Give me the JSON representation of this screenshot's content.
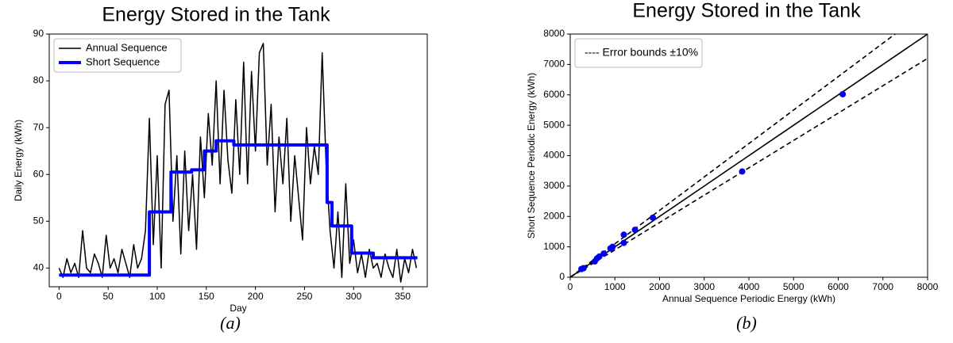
{
  "chart_data": [
    {
      "type": "line",
      "title": "Energy Stored in the Tank",
      "xlabel": "Day",
      "ylabel": "Daily Energy (kWh)",
      "caption": "(a)",
      "xlim": [
        -10,
        375
      ],
      "xticks": [
        0,
        50,
        100,
        150,
        200,
        250,
        300,
        350
      ],
      "ylim": [
        36,
        90
      ],
      "yticks": [
        40,
        50,
        60,
        70,
        80,
        90
      ],
      "legend": "upper left",
      "series": [
        {
          "name": "Annual Sequence",
          "color": "#000000",
          "width": 1.5,
          "x": [
            0,
            4,
            8,
            12,
            16,
            20,
            24,
            28,
            32,
            36,
            40,
            44,
            48,
            52,
            56,
            60,
            64,
            68,
            72,
            76,
            80,
            84,
            88,
            92,
            96,
            100,
            104,
            108,
            112,
            116,
            120,
            124,
            128,
            132,
            136,
            140,
            144,
            148,
            152,
            156,
            160,
            164,
            168,
            172,
            176,
            180,
            184,
            188,
            192,
            196,
            200,
            204,
            208,
            212,
            216,
            220,
            224,
            228,
            232,
            236,
            240,
            244,
            248,
            252,
            256,
            260,
            264,
            268,
            272,
            276,
            280,
            284,
            288,
            292,
            296,
            300,
            304,
            308,
            312,
            316,
            320,
            324,
            328,
            332,
            336,
            340,
            344,
            348,
            352,
            356,
            360,
            364
          ],
          "values": [
            40,
            38,
            42,
            39,
            41,
            38,
            48,
            40,
            39,
            43,
            41,
            38,
            47,
            40,
            42,
            39,
            44,
            41,
            38,
            45,
            40,
            42,
            48,
            72,
            45,
            64,
            40,
            75,
            78,
            50,
            64,
            43,
            65,
            48,
            60,
            44,
            68,
            55,
            73,
            62,
            80,
            58,
            78,
            63,
            56,
            76,
            60,
            84,
            58,
            82,
            65,
            86,
            88,
            62,
            75,
            52,
            68,
            58,
            72,
            50,
            64,
            55,
            46,
            70,
            58,
            66,
            60,
            86,
            62,
            48,
            40,
            52,
            38,
            58,
            41,
            46,
            39,
            43,
            38,
            44,
            40,
            41,
            38,
            43,
            40,
            38,
            44,
            37,
            42,
            39,
            44,
            40
          ]
        },
        {
          "name": "Short Sequence",
          "color": "#0000ff",
          "width": 4,
          "x": [
            0,
            92,
            92,
            114,
            114,
            135,
            135,
            148,
            148,
            160,
            160,
            178,
            178,
            273,
            273,
            278,
            278,
            298,
            298,
            320,
            320,
            365
          ],
          "values": [
            38.5,
            38.5,
            52,
            52,
            60.5,
            60.5,
            61,
            61,
            65,
            65,
            67.2,
            67.2,
            66.3,
            66.3,
            54,
            54,
            49,
            49,
            43.2,
            43.2,
            42.2,
            42.2
          ]
        }
      ]
    },
    {
      "type": "scatter",
      "title": "Energy Stored in the Tank",
      "xlabel": "Annual Sequence Periodic Energy (kWh)",
      "ylabel": "Short Sequence Periodic Energy (kWh)",
      "caption": "(b)",
      "xlim": [
        0,
        8000
      ],
      "xticks": [
        0,
        1000,
        2000,
        3000,
        4000,
        5000,
        6000,
        7000,
        8000
      ],
      "ylim": [
        0,
        8000
      ],
      "yticks": [
        0,
        1000,
        2000,
        3000,
        4000,
        5000,
        6000,
        7000,
        8000
      ],
      "legend": "upper left",
      "reference_lines": [
        {
          "slope": 1,
          "style": "solid"
        },
        {
          "slope": 1.1,
          "style": "dashed",
          "name": "---- Error bounds ±10%"
        },
        {
          "slope": 0.9,
          "style": "dashed"
        }
      ],
      "series": [
        {
          "color": "#0000ee",
          "x": [
            250,
            300,
            550,
            600,
            650,
            750,
            900,
            950,
            1200,
            1200,
            1450,
            1850,
            3850,
            6100
          ],
          "values": [
            270,
            300,
            520,
            620,
            680,
            780,
            950,
            1000,
            1400,
            1130,
            1560,
            1960,
            3480,
            6020
          ]
        }
      ]
    }
  ]
}
